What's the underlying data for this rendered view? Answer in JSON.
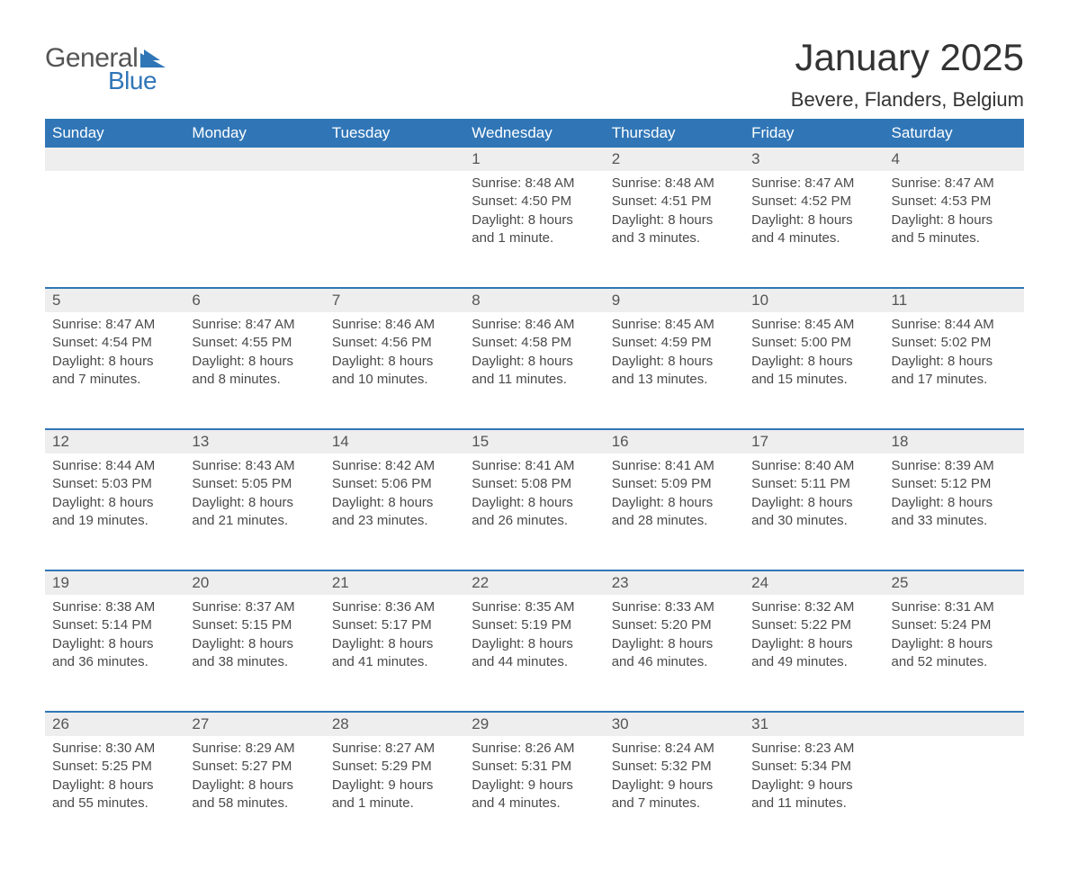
{
  "brand": {
    "word1": "General",
    "word2": "Blue"
  },
  "title": "January 2025",
  "location": "Bevere, Flanders, Belgium",
  "colors": {
    "header_bg": "#3076b7",
    "header_text": "#ffffff",
    "daynum_bg": "#eeeeee",
    "border_top": "#3076b7",
    "body_text": "#4a4a4a",
    "title_text": "#333333",
    "logo_gray": "#555555",
    "logo_blue": "#3076b7",
    "page_bg": "#ffffff"
  },
  "typography": {
    "title_fontsize": 42,
    "location_fontsize": 22,
    "header_fontsize": 17,
    "daynum_fontsize": 17,
    "cell_fontsize": 15
  },
  "weekdays": [
    "Sunday",
    "Monday",
    "Tuesday",
    "Wednesday",
    "Thursday",
    "Friday",
    "Saturday"
  ],
  "weeks": [
    [
      null,
      null,
      null,
      {
        "n": "1",
        "sunrise": "Sunrise: 8:48 AM",
        "sunset": "Sunset: 4:50 PM",
        "daylight": "Daylight: 8 hours and 1 minute."
      },
      {
        "n": "2",
        "sunrise": "Sunrise: 8:48 AM",
        "sunset": "Sunset: 4:51 PM",
        "daylight": "Daylight: 8 hours and 3 minutes."
      },
      {
        "n": "3",
        "sunrise": "Sunrise: 8:47 AM",
        "sunset": "Sunset: 4:52 PM",
        "daylight": "Daylight: 8 hours and 4 minutes."
      },
      {
        "n": "4",
        "sunrise": "Sunrise: 8:47 AM",
        "sunset": "Sunset: 4:53 PM",
        "daylight": "Daylight: 8 hours and 5 minutes."
      }
    ],
    [
      {
        "n": "5",
        "sunrise": "Sunrise: 8:47 AM",
        "sunset": "Sunset: 4:54 PM",
        "daylight": "Daylight: 8 hours and 7 minutes."
      },
      {
        "n": "6",
        "sunrise": "Sunrise: 8:47 AM",
        "sunset": "Sunset: 4:55 PM",
        "daylight": "Daylight: 8 hours and 8 minutes."
      },
      {
        "n": "7",
        "sunrise": "Sunrise: 8:46 AM",
        "sunset": "Sunset: 4:56 PM",
        "daylight": "Daylight: 8 hours and 10 minutes."
      },
      {
        "n": "8",
        "sunrise": "Sunrise: 8:46 AM",
        "sunset": "Sunset: 4:58 PM",
        "daylight": "Daylight: 8 hours and 11 minutes."
      },
      {
        "n": "9",
        "sunrise": "Sunrise: 8:45 AM",
        "sunset": "Sunset: 4:59 PM",
        "daylight": "Daylight: 8 hours and 13 minutes."
      },
      {
        "n": "10",
        "sunrise": "Sunrise: 8:45 AM",
        "sunset": "Sunset: 5:00 PM",
        "daylight": "Daylight: 8 hours and 15 minutes."
      },
      {
        "n": "11",
        "sunrise": "Sunrise: 8:44 AM",
        "sunset": "Sunset: 5:02 PM",
        "daylight": "Daylight: 8 hours and 17 minutes."
      }
    ],
    [
      {
        "n": "12",
        "sunrise": "Sunrise: 8:44 AM",
        "sunset": "Sunset: 5:03 PM",
        "daylight": "Daylight: 8 hours and 19 minutes."
      },
      {
        "n": "13",
        "sunrise": "Sunrise: 8:43 AM",
        "sunset": "Sunset: 5:05 PM",
        "daylight": "Daylight: 8 hours and 21 minutes."
      },
      {
        "n": "14",
        "sunrise": "Sunrise: 8:42 AM",
        "sunset": "Sunset: 5:06 PM",
        "daylight": "Daylight: 8 hours and 23 minutes."
      },
      {
        "n": "15",
        "sunrise": "Sunrise: 8:41 AM",
        "sunset": "Sunset: 5:08 PM",
        "daylight": "Daylight: 8 hours and 26 minutes."
      },
      {
        "n": "16",
        "sunrise": "Sunrise: 8:41 AM",
        "sunset": "Sunset: 5:09 PM",
        "daylight": "Daylight: 8 hours and 28 minutes."
      },
      {
        "n": "17",
        "sunrise": "Sunrise: 8:40 AM",
        "sunset": "Sunset: 5:11 PM",
        "daylight": "Daylight: 8 hours and 30 minutes."
      },
      {
        "n": "18",
        "sunrise": "Sunrise: 8:39 AM",
        "sunset": "Sunset: 5:12 PM",
        "daylight": "Daylight: 8 hours and 33 minutes."
      }
    ],
    [
      {
        "n": "19",
        "sunrise": "Sunrise: 8:38 AM",
        "sunset": "Sunset: 5:14 PM",
        "daylight": "Daylight: 8 hours and 36 minutes."
      },
      {
        "n": "20",
        "sunrise": "Sunrise: 8:37 AM",
        "sunset": "Sunset: 5:15 PM",
        "daylight": "Daylight: 8 hours and 38 minutes."
      },
      {
        "n": "21",
        "sunrise": "Sunrise: 8:36 AM",
        "sunset": "Sunset: 5:17 PM",
        "daylight": "Daylight: 8 hours and 41 minutes."
      },
      {
        "n": "22",
        "sunrise": "Sunrise: 8:35 AM",
        "sunset": "Sunset: 5:19 PM",
        "daylight": "Daylight: 8 hours and 44 minutes."
      },
      {
        "n": "23",
        "sunrise": "Sunrise: 8:33 AM",
        "sunset": "Sunset: 5:20 PM",
        "daylight": "Daylight: 8 hours and 46 minutes."
      },
      {
        "n": "24",
        "sunrise": "Sunrise: 8:32 AM",
        "sunset": "Sunset: 5:22 PM",
        "daylight": "Daylight: 8 hours and 49 minutes."
      },
      {
        "n": "25",
        "sunrise": "Sunrise: 8:31 AM",
        "sunset": "Sunset: 5:24 PM",
        "daylight": "Daylight: 8 hours and 52 minutes."
      }
    ],
    [
      {
        "n": "26",
        "sunrise": "Sunrise: 8:30 AM",
        "sunset": "Sunset: 5:25 PM",
        "daylight": "Daylight: 8 hours and 55 minutes."
      },
      {
        "n": "27",
        "sunrise": "Sunrise: 8:29 AM",
        "sunset": "Sunset: 5:27 PM",
        "daylight": "Daylight: 8 hours and 58 minutes."
      },
      {
        "n": "28",
        "sunrise": "Sunrise: 8:27 AM",
        "sunset": "Sunset: 5:29 PM",
        "daylight": "Daylight: 9 hours and 1 minute."
      },
      {
        "n": "29",
        "sunrise": "Sunrise: 8:26 AM",
        "sunset": "Sunset: 5:31 PM",
        "daylight": "Daylight: 9 hours and 4 minutes."
      },
      {
        "n": "30",
        "sunrise": "Sunrise: 8:24 AM",
        "sunset": "Sunset: 5:32 PM",
        "daylight": "Daylight: 9 hours and 7 minutes."
      },
      {
        "n": "31",
        "sunrise": "Sunrise: 8:23 AM",
        "sunset": "Sunset: 5:34 PM",
        "daylight": "Daylight: 9 hours and 11 minutes."
      },
      null
    ]
  ]
}
